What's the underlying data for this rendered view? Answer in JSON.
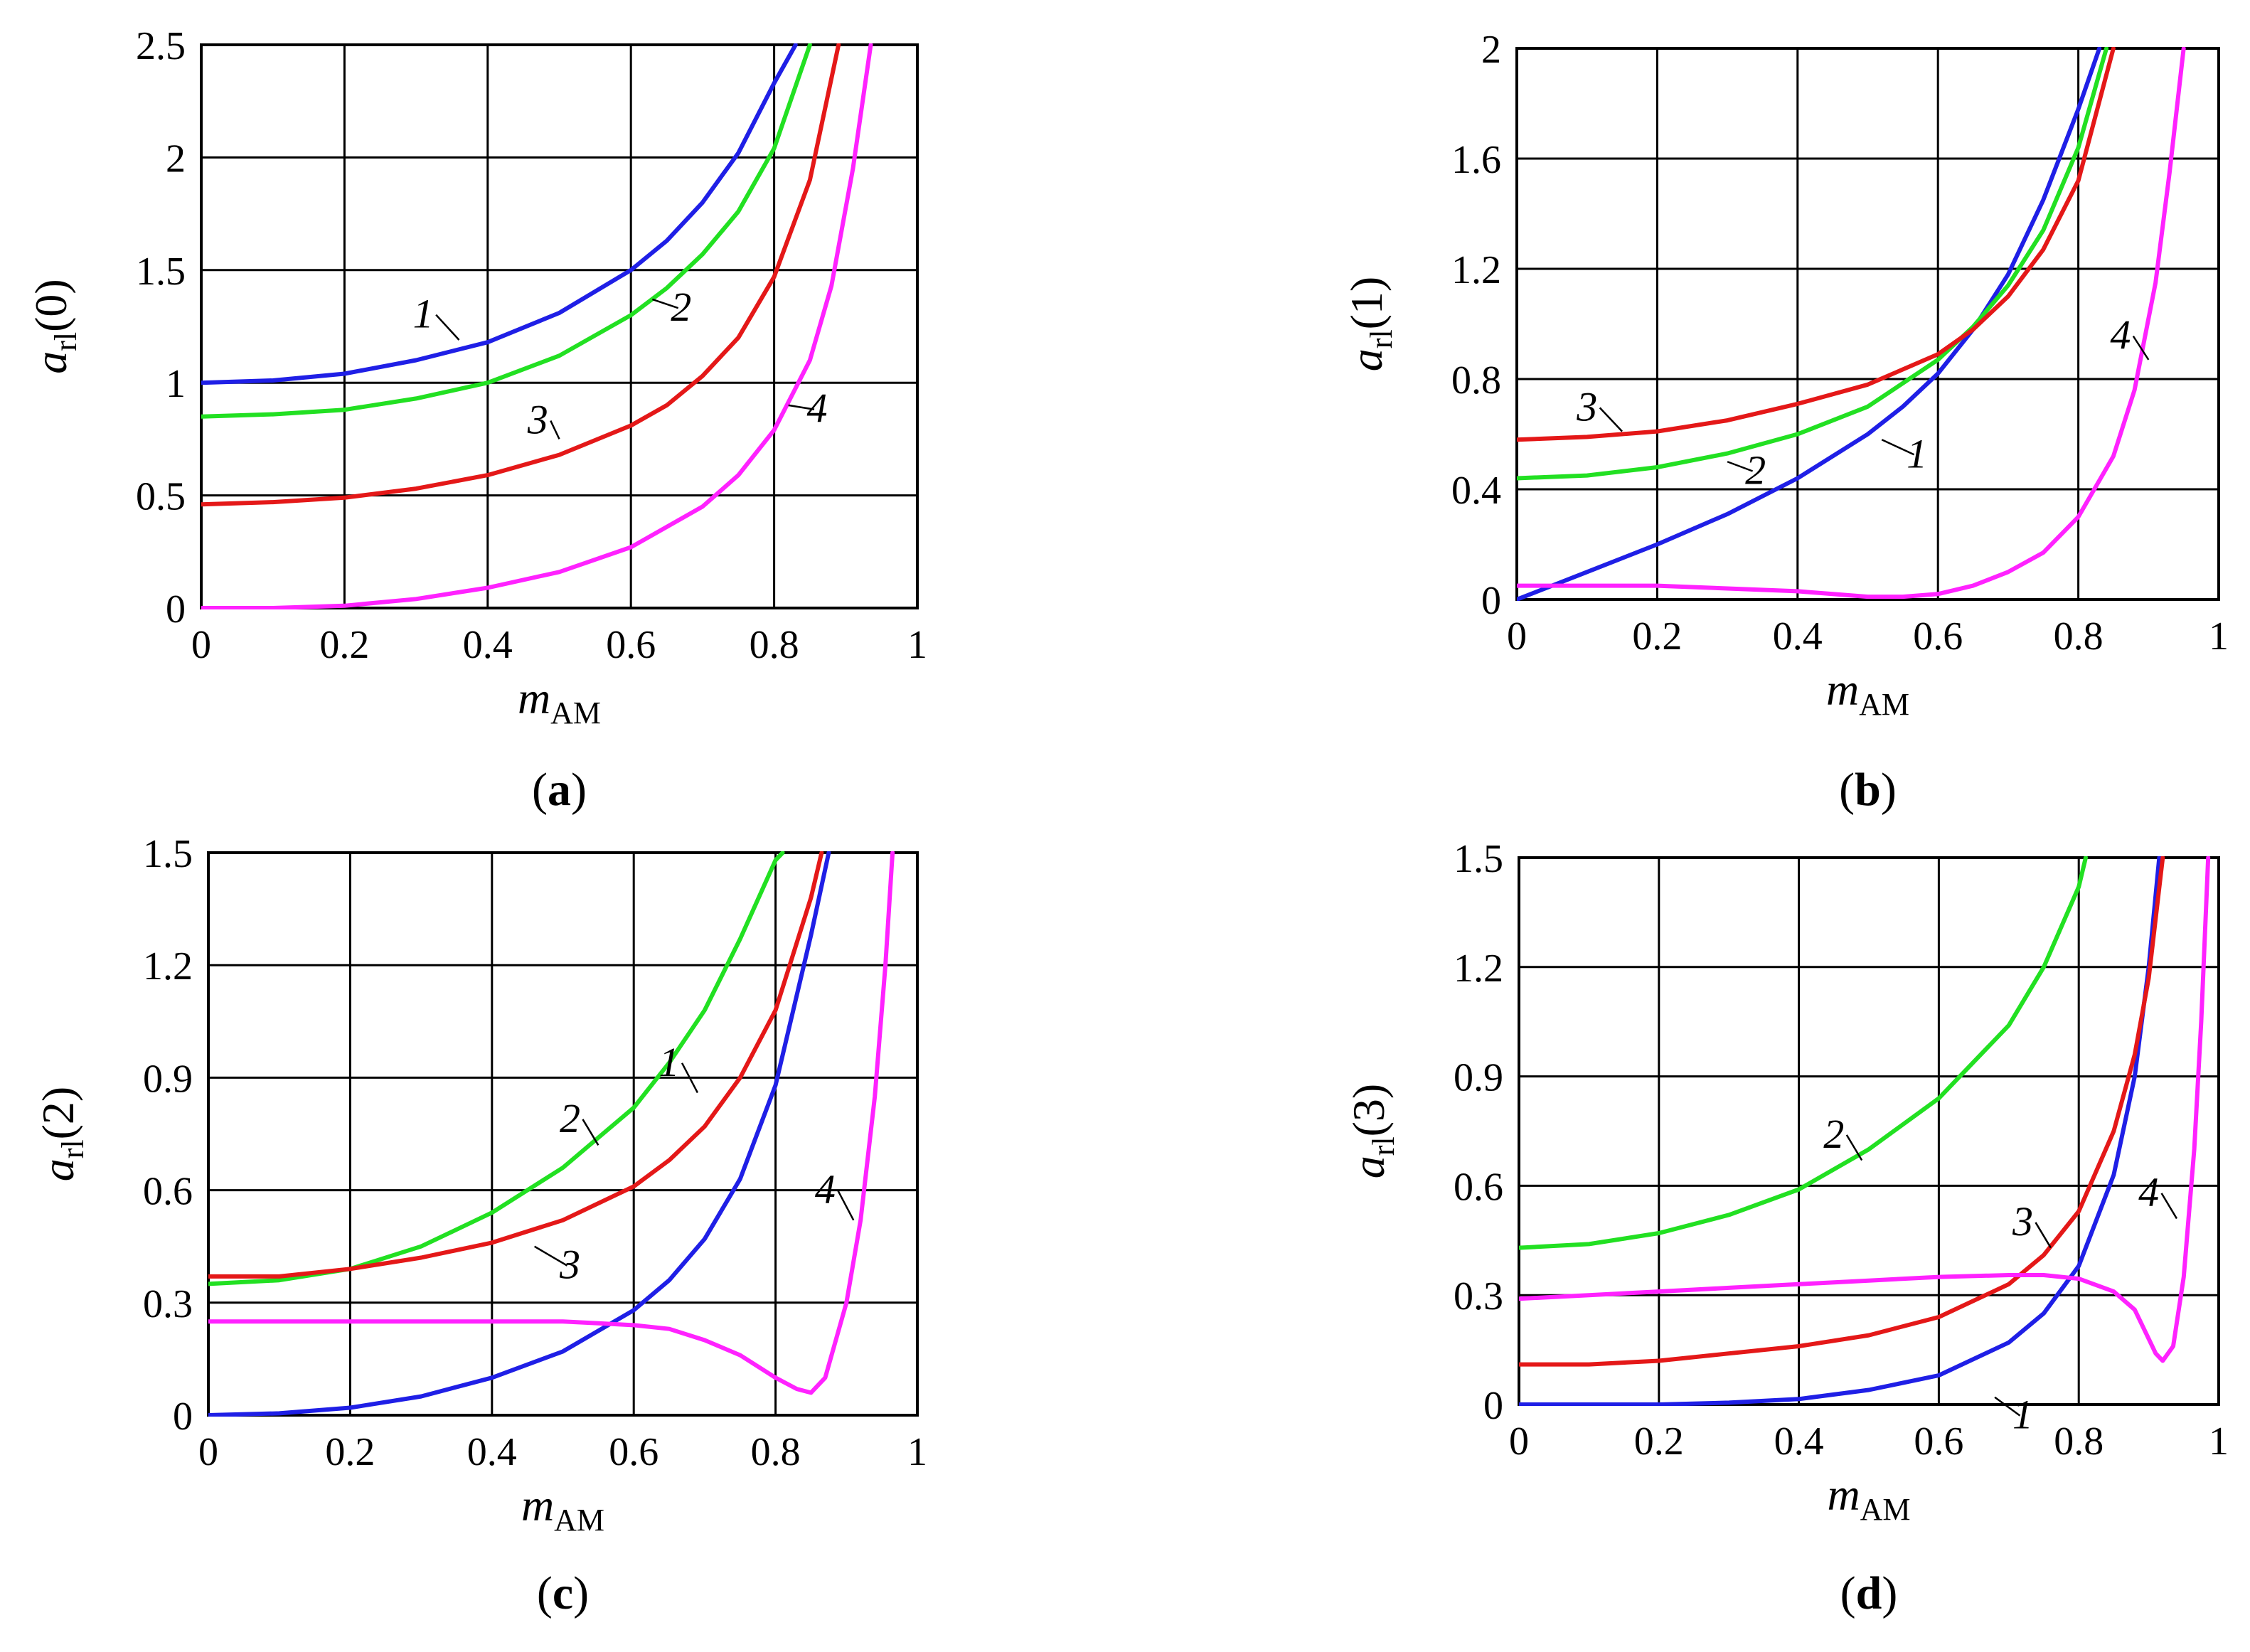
{
  "figure": {
    "label_colors": {
      "1": "#1f1fe6",
      "2": "#22e022",
      "3": "#e41818",
      "4": "#ff22ff"
    }
  },
  "chart_data": [
    {
      "type": "line",
      "id": "a",
      "caption": "a",
      "ylabel_var": "a",
      "ylabel_sub": "rl",
      "ylabel_arg": "(0)",
      "xlabel_var": "m",
      "xlabel_sub": "AM",
      "xlim": [
        0,
        1
      ],
      "ylim": [
        0,
        2.5
      ],
      "xticks": [
        0,
        0.2,
        0.4,
        0.6,
        0.8,
        1
      ],
      "xtick_labels": [
        "0",
        "0.2",
        "0.4",
        "0.6",
        "0.8",
        "1"
      ],
      "yticks": [
        0,
        0.5,
        1,
        1.5,
        2,
        2.5
      ],
      "ytick_labels": [
        "0",
        "0.5",
        "1",
        "1.5",
        "2",
        "2.5"
      ],
      "grid": true,
      "series": [
        {
          "name": "1",
          "color": "#1f1fe6",
          "x": [
            0,
            0.1,
            0.2,
            0.3,
            0.4,
            0.5,
            0.6,
            0.65,
            0.7,
            0.75,
            0.8,
            0.83
          ],
          "y": [
            1.0,
            1.01,
            1.04,
            1.1,
            1.18,
            1.31,
            1.5,
            1.63,
            1.8,
            2.02,
            2.33,
            2.5
          ],
          "label": "1",
          "label_at": [
            0.31,
            1.27
          ],
          "label_anchor": [
            0.36,
            1.19
          ]
        },
        {
          "name": "2",
          "color": "#22e022",
          "x": [
            0,
            0.1,
            0.2,
            0.3,
            0.4,
            0.5,
            0.6,
            0.65,
            0.7,
            0.75,
            0.8,
            0.85
          ],
          "y": [
            0.85,
            0.86,
            0.88,
            0.93,
            1.0,
            1.12,
            1.3,
            1.42,
            1.57,
            1.76,
            2.04,
            2.5
          ],
          "label": "2",
          "label_at": [
            0.67,
            1.3
          ],
          "label_anchor": [
            0.63,
            1.37
          ]
        },
        {
          "name": "3",
          "color": "#e41818",
          "x": [
            0,
            0.1,
            0.2,
            0.3,
            0.4,
            0.5,
            0.6,
            0.65,
            0.7,
            0.75,
            0.8,
            0.85,
            0.89
          ],
          "y": [
            0.46,
            0.47,
            0.49,
            0.53,
            0.59,
            0.68,
            0.81,
            0.9,
            1.03,
            1.2,
            1.47,
            1.9,
            2.5
          ],
          "label": "3",
          "label_at": [
            0.47,
            0.8
          ],
          "label_anchor": [
            0.5,
            0.75
          ]
        },
        {
          "name": "4",
          "color": "#ff22ff",
          "x": [
            0,
            0.1,
            0.2,
            0.3,
            0.4,
            0.5,
            0.6,
            0.7,
            0.75,
            0.8,
            0.85,
            0.88,
            0.91,
            0.935
          ],
          "y": [
            0,
            0,
            0.01,
            0.04,
            0.09,
            0.16,
            0.27,
            0.45,
            0.59,
            0.79,
            1.1,
            1.43,
            1.95,
            2.5
          ],
          "label": "4",
          "label_at": [
            0.86,
            0.85
          ],
          "label_anchor": [
            0.82,
            0.9
          ]
        }
      ]
    },
    {
      "type": "line",
      "id": "b",
      "caption": "b",
      "ylabel_var": "a",
      "ylabel_sub": "rl",
      "ylabel_arg": "(1)",
      "xlabel_var": "m",
      "xlabel_sub": "AM",
      "xlim": [
        0,
        1
      ],
      "ylim": [
        0,
        2
      ],
      "xticks": [
        0,
        0.2,
        0.4,
        0.6,
        0.8,
        1
      ],
      "xtick_labels": [
        "0",
        "0.2",
        "0.4",
        "0.6",
        "0.8",
        "1"
      ],
      "yticks": [
        0,
        0.4,
        0.8,
        1.2,
        1.6,
        2
      ],
      "ytick_labels": [
        "0",
        "0.4",
        "0.8",
        "1.2",
        "1.6",
        "2"
      ],
      "grid": true,
      "series": [
        {
          "name": "1",
          "color": "#1f1fe6",
          "x": [
            0,
            0.1,
            0.2,
            0.3,
            0.4,
            0.5,
            0.55,
            0.6,
            0.65,
            0.7,
            0.75,
            0.8,
            0.83
          ],
          "y": [
            0,
            0.1,
            0.2,
            0.31,
            0.44,
            0.6,
            0.7,
            0.82,
            0.98,
            1.18,
            1.45,
            1.78,
            2.0
          ],
          "label": "1",
          "label_at": [
            0.57,
            0.5
          ],
          "label_anchor": [
            0.52,
            0.58
          ]
        },
        {
          "name": "2",
          "color": "#22e022",
          "x": [
            0,
            0.1,
            0.2,
            0.3,
            0.4,
            0.5,
            0.6,
            0.65,
            0.7,
            0.75,
            0.8,
            0.84
          ],
          "y": [
            0.44,
            0.45,
            0.48,
            0.53,
            0.6,
            0.7,
            0.87,
            0.99,
            1.14,
            1.34,
            1.64,
            2.0
          ],
          "label": "2",
          "label_at": [
            0.34,
            0.44
          ],
          "label_anchor": [
            0.3,
            0.5
          ]
        },
        {
          "name": "3",
          "color": "#e41818",
          "x": [
            0,
            0.1,
            0.2,
            0.3,
            0.4,
            0.5,
            0.6,
            0.65,
            0.7,
            0.75,
            0.8,
            0.85
          ],
          "y": [
            0.58,
            0.59,
            0.61,
            0.65,
            0.71,
            0.78,
            0.89,
            0.98,
            1.1,
            1.27,
            1.52,
            2.0
          ],
          "label": "3",
          "label_at": [
            0.1,
            0.67
          ],
          "label_anchor": [
            0.15,
            0.61
          ]
        },
        {
          "name": "4",
          "color": "#ff22ff",
          "x": [
            0,
            0.1,
            0.2,
            0.3,
            0.4,
            0.45,
            0.5,
            0.55,
            0.6,
            0.65,
            0.7,
            0.75,
            0.8,
            0.85,
            0.88,
            0.91,
            0.93,
            0.95
          ],
          "y": [
            0.05,
            0.05,
            0.05,
            0.04,
            0.03,
            0.02,
            0.01,
            0.01,
            0.02,
            0.05,
            0.1,
            0.17,
            0.3,
            0.52,
            0.76,
            1.15,
            1.55,
            2.0
          ],
          "label": "4",
          "label_at": [
            0.86,
            0.93
          ],
          "label_anchor": [
            0.9,
            0.87
          ]
        }
      ]
    },
    {
      "type": "line",
      "id": "c",
      "caption": "c",
      "ylabel_var": "a",
      "ylabel_sub": "rl",
      "ylabel_arg": "(2)",
      "xlabel_var": "m",
      "xlabel_sub": "AM",
      "xlim": [
        0,
        1
      ],
      "ylim": [
        0,
        1.5
      ],
      "xticks": [
        0,
        0.2,
        0.4,
        0.6,
        0.8,
        1
      ],
      "xtick_labels": [
        "0",
        "0.2",
        "0.4",
        "0.6",
        "0.8",
        "1"
      ],
      "yticks": [
        0,
        0.3,
        0.6,
        0.9,
        1.2,
        1.5
      ],
      "ytick_labels": [
        "0",
        "0.3",
        "0.6",
        "0.9",
        "1.2",
        "1.5"
      ],
      "grid": true,
      "series": [
        {
          "name": "1",
          "color": "#1f1fe6",
          "x": [
            0,
            0.1,
            0.2,
            0.3,
            0.4,
            0.5,
            0.6,
            0.65,
            0.7,
            0.75,
            0.8,
            0.85,
            0.875
          ],
          "y": [
            0,
            0.005,
            0.02,
            0.05,
            0.1,
            0.17,
            0.28,
            0.36,
            0.47,
            0.63,
            0.88,
            1.28,
            1.5
          ],
          "label": "1",
          "label_at": [
            0.65,
            0.92
          ],
          "label_anchor": [
            0.69,
            0.86
          ]
        },
        {
          "name": "2",
          "color": "#22e022",
          "x": [
            0,
            0.1,
            0.2,
            0.3,
            0.4,
            0.5,
            0.6,
            0.65,
            0.7,
            0.75,
            0.8,
            0.81
          ],
          "y": [
            0.35,
            0.36,
            0.39,
            0.45,
            0.54,
            0.66,
            0.82,
            0.94,
            1.08,
            1.27,
            1.48,
            1.5
          ],
          "label": "2",
          "label_at": [
            0.51,
            0.77
          ],
          "label_anchor": [
            0.55,
            0.72
          ]
        },
        {
          "name": "3",
          "color": "#e41818",
          "x": [
            0,
            0.1,
            0.2,
            0.3,
            0.4,
            0.5,
            0.6,
            0.65,
            0.7,
            0.75,
            0.8,
            0.85,
            0.865
          ],
          "y": [
            0.37,
            0.37,
            0.39,
            0.42,
            0.46,
            0.52,
            0.61,
            0.68,
            0.77,
            0.9,
            1.08,
            1.38,
            1.5
          ],
          "label": "3",
          "label_at": [
            0.51,
            0.38
          ],
          "label_anchor": [
            0.46,
            0.45
          ]
        },
        {
          "name": "4",
          "color": "#ff22ff",
          "x": [
            0,
            0.1,
            0.2,
            0.3,
            0.4,
            0.5,
            0.55,
            0.6,
            0.65,
            0.7,
            0.75,
            0.8,
            0.83,
            0.85,
            0.87,
            0.9,
            0.92,
            0.94,
            0.955,
            0.965
          ],
          "y": [
            0.25,
            0.25,
            0.25,
            0.25,
            0.25,
            0.25,
            0.245,
            0.24,
            0.23,
            0.2,
            0.16,
            0.1,
            0.07,
            0.06,
            0.1,
            0.3,
            0.52,
            0.85,
            1.2,
            1.5
          ],
          "label": "4",
          "label_at": [
            0.87,
            0.58
          ],
          "label_anchor": [
            0.91,
            0.52
          ]
        }
      ]
    },
    {
      "type": "line",
      "id": "d",
      "caption": "d",
      "ylabel_var": "a",
      "ylabel_sub": "rl",
      "ylabel_arg": "(3)",
      "xlabel_var": "m",
      "xlabel_sub": "AM",
      "xlim": [
        0,
        1
      ],
      "ylim": [
        0,
        1.5
      ],
      "xticks": [
        0,
        0.2,
        0.4,
        0.6,
        0.8,
        1
      ],
      "xtick_labels": [
        "0",
        "0.2",
        "0.4",
        "0.6",
        "0.8",
        "1"
      ],
      "yticks": [
        0,
        0.3,
        0.6,
        0.9,
        1.2,
        1.5
      ],
      "ytick_labels": [
        "0",
        "0.3",
        "0.6",
        "0.9",
        "1.2",
        "1.5"
      ],
      "grid": true,
      "series": [
        {
          "name": "1",
          "color": "#1f1fe6",
          "x": [
            0,
            0.1,
            0.2,
            0.3,
            0.4,
            0.5,
            0.6,
            0.7,
            0.75,
            0.8,
            0.85,
            0.88,
            0.9,
            0.915
          ],
          "y": [
            0,
            0,
            0,
            0.005,
            0.015,
            0.04,
            0.08,
            0.17,
            0.25,
            0.38,
            0.63,
            0.9,
            1.2,
            1.5
          ],
          "label": "1",
          "label_at": [
            0.72,
            -0.05
          ],
          "label_anchor": [
            0.68,
            0.02
          ]
        },
        {
          "name": "2",
          "color": "#22e022",
          "x": [
            0,
            0.1,
            0.2,
            0.3,
            0.4,
            0.5,
            0.6,
            0.7,
            0.75,
            0.8,
            0.81
          ],
          "y": [
            0.43,
            0.44,
            0.47,
            0.52,
            0.59,
            0.7,
            0.84,
            1.04,
            1.2,
            1.42,
            1.5
          ],
          "label": "2",
          "label_at": [
            0.45,
            0.72
          ],
          "label_anchor": [
            0.49,
            0.67
          ]
        },
        {
          "name": "3",
          "color": "#e41818",
          "x": [
            0,
            0.1,
            0.2,
            0.3,
            0.4,
            0.5,
            0.6,
            0.7,
            0.75,
            0.8,
            0.85,
            0.88,
            0.9,
            0.92
          ],
          "y": [
            0.11,
            0.11,
            0.12,
            0.14,
            0.16,
            0.19,
            0.24,
            0.33,
            0.41,
            0.53,
            0.75,
            0.96,
            1.17,
            1.5
          ],
          "label": "3",
          "label_at": [
            0.72,
            0.48
          ],
          "label_anchor": [
            0.76,
            0.43
          ]
        },
        {
          "name": "4",
          "color": "#ff22ff",
          "x": [
            0,
            0.1,
            0.2,
            0.3,
            0.4,
            0.5,
            0.6,
            0.7,
            0.75,
            0.8,
            0.85,
            0.88,
            0.9,
            0.91,
            0.92,
            0.935,
            0.95,
            0.965,
            0.975,
            0.985
          ],
          "y": [
            0.29,
            0.3,
            0.31,
            0.32,
            0.33,
            0.34,
            0.35,
            0.355,
            0.355,
            0.345,
            0.31,
            0.26,
            0.18,
            0.14,
            0.12,
            0.16,
            0.35,
            0.7,
            1.05,
            1.5
          ],
          "label": "4",
          "label_at": [
            0.9,
            0.56
          ],
          "label_anchor": [
            0.94,
            0.51
          ]
        }
      ]
    }
  ]
}
